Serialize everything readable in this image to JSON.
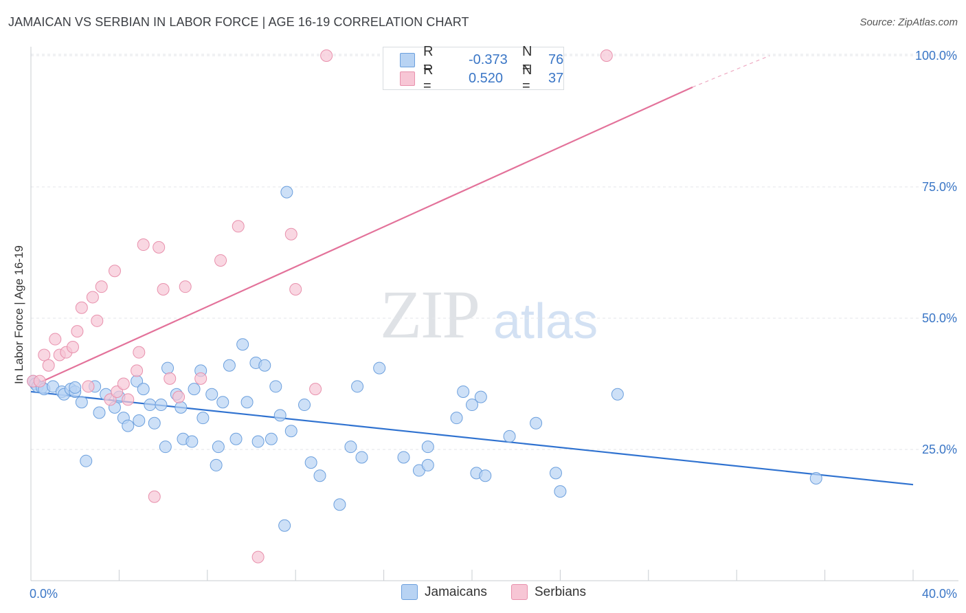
{
  "title": "JAMAICAN VS SERBIAN IN LABOR FORCE | AGE 16-19 CORRELATION CHART",
  "source": "Source: ZipAtlas.com",
  "watermark": {
    "zip": "ZIP",
    "atlas": "atlas"
  },
  "legend": {
    "r_label": "R =",
    "n_label": "N =",
    "jamaicans": {
      "r": "-0.373",
      "n": "76"
    },
    "serbians": {
      "r": "0.520",
      "n": "37"
    }
  },
  "colors": {
    "jamaicans_fill": "#b8d3f3",
    "jamaicans_stroke": "#6b9fdd",
    "jamaicans_line": "#2f72d0",
    "serbians_fill": "#f7c6d5",
    "serbians_stroke": "#e890ac",
    "serbians_line": "#e3729a",
    "axis_label": "#3a76c6"
  },
  "chart_data": {
    "type": "scatter",
    "title": "JAMAICAN VS SERBIAN IN LABOR FORCE | AGE 16-19 CORRELATION CHART",
    "xlabel": "",
    "ylabel": "In Labor Force | Age 16-19",
    "xlim": [
      0,
      40
    ],
    "ylim": [
      0,
      102
    ],
    "x_tick_labels": [
      "0.0%",
      "40.0%"
    ],
    "y_ticks": [
      25,
      50,
      75,
      100
    ],
    "y_tick_labels": [
      "25.0%",
      "50.0%",
      "75.0%",
      "100.0%"
    ],
    "grid": true,
    "legend_position": "top-center",
    "series": [
      {
        "name": "Jamaicans",
        "trend": {
          "x": [
            0,
            40
          ],
          "y": [
            36.0,
            18.3
          ]
        },
        "points": [
          [
            0.1,
            38.0
          ],
          [
            0.2,
            37.5
          ],
          [
            0.3,
            37.0
          ],
          [
            0.5,
            36.8
          ],
          [
            0.6,
            36.5
          ],
          [
            1.0,
            37.0
          ],
          [
            1.4,
            36.0
          ],
          [
            1.5,
            35.5
          ],
          [
            1.8,
            36.5
          ],
          [
            2.0,
            36.0
          ],
          [
            2.0,
            36.8
          ],
          [
            2.3,
            34.0
          ],
          [
            2.5,
            22.8
          ],
          [
            2.9,
            37.0
          ],
          [
            3.1,
            32.0
          ],
          [
            3.4,
            35.5
          ],
          [
            3.8,
            33.0
          ],
          [
            4.0,
            35.0
          ],
          [
            4.2,
            31.0
          ],
          [
            4.4,
            29.5
          ],
          [
            4.8,
            38.0
          ],
          [
            4.9,
            30.5
          ],
          [
            5.1,
            36.5
          ],
          [
            5.4,
            33.5
          ],
          [
            5.6,
            30.0
          ],
          [
            5.9,
            33.5
          ],
          [
            6.1,
            25.5
          ],
          [
            6.2,
            40.5
          ],
          [
            6.6,
            35.5
          ],
          [
            6.8,
            33.0
          ],
          [
            6.9,
            27.0
          ],
          [
            7.3,
            26.5
          ],
          [
            7.4,
            36.5
          ],
          [
            7.7,
            40.0
          ],
          [
            7.8,
            31.0
          ],
          [
            8.2,
            35.5
          ],
          [
            8.4,
            22.0
          ],
          [
            8.5,
            25.5
          ],
          [
            8.7,
            34.0
          ],
          [
            9.0,
            41.0
          ],
          [
            9.3,
            27.0
          ],
          [
            9.6,
            45.0
          ],
          [
            9.8,
            34.0
          ],
          [
            10.2,
            41.5
          ],
          [
            10.3,
            26.5
          ],
          [
            10.6,
            41.0
          ],
          [
            10.9,
            27.0
          ],
          [
            11.1,
            37.0
          ],
          [
            11.3,
            31.5
          ],
          [
            11.5,
            10.5
          ],
          [
            11.6,
            74.0
          ],
          [
            11.8,
            28.5
          ],
          [
            12.4,
            33.5
          ],
          [
            12.7,
            22.5
          ],
          [
            13.1,
            20.0
          ],
          [
            14.0,
            14.5
          ],
          [
            14.5,
            25.5
          ],
          [
            14.8,
            37.0
          ],
          [
            15.0,
            23.5
          ],
          [
            15.8,
            40.5
          ],
          [
            16.9,
            23.5
          ],
          [
            17.6,
            21.0
          ],
          [
            18.0,
            25.5
          ],
          [
            18.0,
            22.0
          ],
          [
            19.3,
            31.0
          ],
          [
            19.6,
            36.0
          ],
          [
            20.0,
            33.5
          ],
          [
            20.2,
            20.5
          ],
          [
            20.4,
            35.0
          ],
          [
            20.6,
            20.0
          ],
          [
            21.7,
            27.5
          ],
          [
            22.9,
            30.0
          ],
          [
            23.8,
            20.5
          ],
          [
            24.0,
            17.0
          ],
          [
            26.6,
            35.5
          ],
          [
            35.6,
            19.5
          ]
        ]
      },
      {
        "name": "Serbians",
        "trend": {
          "x": [
            0,
            30
          ],
          "y": [
            37.0,
            94.0
          ],
          "dashed_extension": {
            "x": [
              30,
              33.5
            ],
            "y": [
              94.0,
              100.0
            ]
          }
        },
        "points": [
          [
            0.1,
            38.0
          ],
          [
            0.4,
            38.0
          ],
          [
            0.6,
            43.0
          ],
          [
            0.8,
            41.0
          ],
          [
            1.1,
            46.0
          ],
          [
            1.3,
            43.0
          ],
          [
            1.6,
            43.5
          ],
          [
            1.9,
            44.5
          ],
          [
            2.1,
            47.5
          ],
          [
            2.3,
            52.0
          ],
          [
            2.6,
            37.0
          ],
          [
            2.8,
            54.0
          ],
          [
            3.0,
            49.5
          ],
          [
            3.2,
            56.0
          ],
          [
            3.6,
            34.5
          ],
          [
            3.8,
            59.0
          ],
          [
            3.9,
            36.0
          ],
          [
            4.2,
            37.5
          ],
          [
            4.4,
            34.5
          ],
          [
            4.8,
            40.0
          ],
          [
            4.9,
            43.5
          ],
          [
            5.1,
            64.0
          ],
          [
            5.6,
            16.0
          ],
          [
            5.8,
            63.5
          ],
          [
            6.0,
            55.5
          ],
          [
            6.3,
            38.5
          ],
          [
            6.7,
            35.0
          ],
          [
            7.0,
            56.0
          ],
          [
            7.7,
            38.5
          ],
          [
            8.6,
            61.0
          ],
          [
            9.4,
            67.5
          ],
          [
            10.3,
            4.5
          ],
          [
            11.8,
            66.0
          ],
          [
            12.0,
            55.5
          ],
          [
            12.9,
            36.5
          ],
          [
            13.4,
            100.0
          ],
          [
            26.1,
            100.0
          ]
        ]
      }
    ]
  }
}
